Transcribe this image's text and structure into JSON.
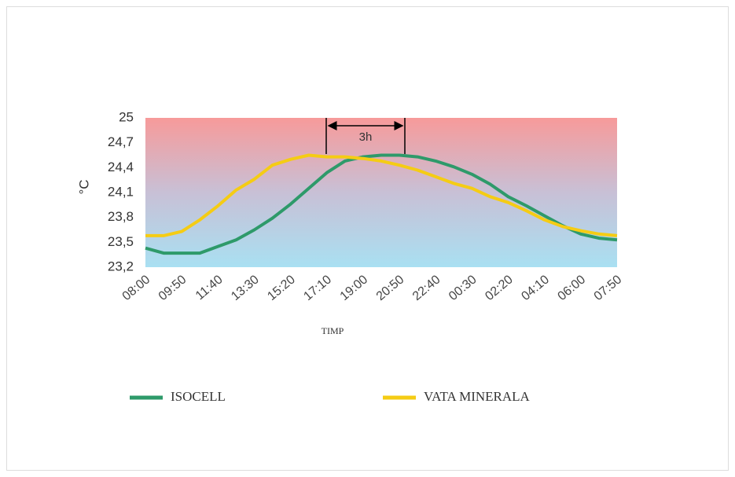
{
  "chart_data": {
    "type": "line",
    "ylabel": "°C",
    "xlabel": "TIMP",
    "annotation": "3h",
    "categories": [
      "08:00",
      null,
      "09:50",
      null,
      "11:40",
      null,
      "13:30",
      null,
      "15:20",
      null,
      "17:10",
      null,
      "19:00",
      null,
      "20:50",
      null,
      "22:40",
      null,
      "00:30",
      null,
      "02:20",
      null,
      "04:10",
      null,
      "06:00",
      null,
      "07:50"
    ],
    "series": [
      {
        "name": "ISOCELL",
        "color": "#2e9a6a",
        "values": [
          23.43,
          23.37,
          23.37,
          23.37,
          23.45,
          23.53,
          23.65,
          23.79,
          23.96,
          24.15,
          24.34,
          24.48,
          24.53,
          24.55,
          24.55,
          24.53,
          24.48,
          24.41,
          24.32,
          24.2,
          24.05,
          23.94,
          23.82,
          23.7,
          23.6,
          23.55,
          23.53
        ]
      },
      {
        "name": "VATA MINERALA",
        "color": "#f5cc14",
        "values": [
          23.58,
          23.58,
          23.63,
          23.77,
          23.94,
          24.13,
          24.26,
          24.43,
          24.5,
          24.55,
          24.53,
          24.53,
          24.51,
          24.48,
          24.43,
          24.37,
          24.29,
          24.21,
          24.15,
          24.05,
          23.98,
          23.88,
          23.77,
          23.69,
          23.64,
          23.6,
          23.58
        ]
      }
    ],
    "ylim": [
      23.2,
      25
    ],
    "yticks": [
      {
        "value": 23.2,
        "label": "23,2"
      },
      {
        "value": 23.5,
        "label": "23,5"
      },
      {
        "value": 23.8,
        "label": "23,8"
      },
      {
        "value": 24.1,
        "label": "24,1"
      },
      {
        "value": 24.4,
        "label": "24,4"
      },
      {
        "value": 24.7,
        "label": "24,7"
      },
      25
    ],
    "legend": "bottom"
  }
}
